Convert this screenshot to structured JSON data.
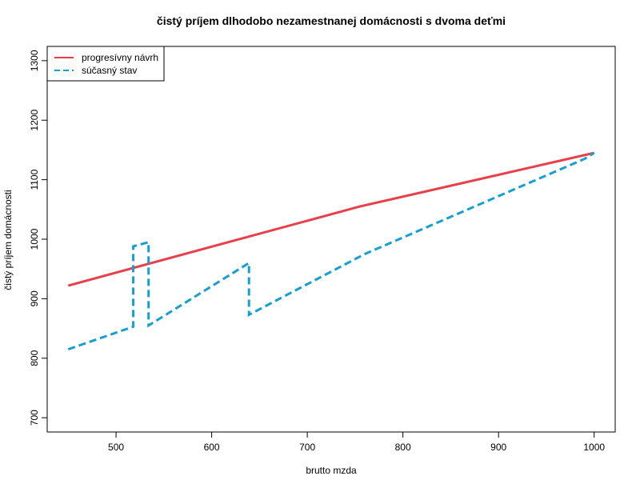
{
  "chart_data": {
    "type": "line",
    "title": "čistý príjem dlhodobo nezamestnanej domácnosti s dvoma deťmi",
    "x_label": "brutto mzda",
    "y_label": "čistý príjem domácnosti",
    "xlim": [
      428,
      1022
    ],
    "xticks": [
      500,
      600,
      700,
      800,
      900,
      1000
    ],
    "ylim": [
      676,
      1324
    ],
    "yticks": [
      700,
      800,
      900,
      1000,
      1100,
      1200,
      1300
    ],
    "legend": "top-left",
    "series": [
      {
        "name": "progresívny návrh",
        "color": "#e8404a",
        "dash": false,
        "x": [
          450,
          755,
          1000
        ],
        "values": [
          922,
          1055,
          1145
        ]
      },
      {
        "name": "súčasný stav",
        "color": "#14a0d4",
        "dash": true,
        "x": [
          450,
          518,
          518,
          534,
          534,
          639,
          639,
          760,
          990,
          1000
        ],
        "values": [
          815,
          853,
          988,
          995,
          855,
          960,
          873,
          975,
          1135,
          1145
        ]
      }
    ]
  }
}
